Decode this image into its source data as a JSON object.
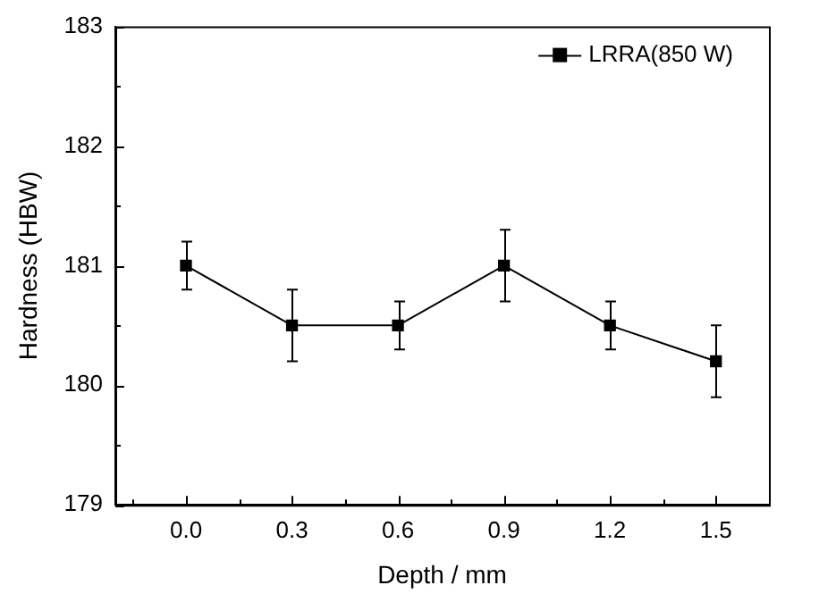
{
  "chart_data": {
    "type": "line",
    "xlabel": "Depth / mm",
    "ylabel": "Hardness (HBW)",
    "x": [
      0.0,
      0.3,
      0.6,
      0.9,
      1.2,
      1.5
    ],
    "series": [
      {
        "name": "LRRA(850 W)",
        "color": "#000000",
        "values": [
          181.0,
          180.5,
          180.5,
          181.0,
          180.5,
          180.2
        ],
        "errors": [
          0.2,
          0.3,
          0.2,
          0.3,
          0.2,
          0.3
        ]
      }
    ],
    "xlim": [
      -0.2,
      1.65
    ],
    "xticks": [
      {
        "value": -0.15,
        "label": null
      },
      {
        "value": 0.0,
        "label": "0.0"
      },
      {
        "value": 0.15,
        "label": null
      },
      {
        "value": 0.3,
        "label": "0.3"
      },
      {
        "value": 0.45,
        "label": null
      },
      {
        "value": 0.6,
        "label": "0.6"
      },
      {
        "value": 0.75,
        "label": null
      },
      {
        "value": 0.9,
        "label": "0.9"
      },
      {
        "value": 1.05,
        "label": null
      },
      {
        "value": 1.2,
        "label": "1.2"
      },
      {
        "value": 1.35,
        "label": null
      },
      {
        "value": 1.5,
        "label": "1.5"
      }
    ],
    "ylim": [
      179,
      183
    ],
    "yticks": [
      179,
      {
        "value": 179.5,
        "label": null
      },
      180,
      {
        "value": 180.5,
        "label": null
      },
      181,
      {
        "value": 181.5,
        "label": null
      },
      182,
      {
        "value": 182.5,
        "label": null
      },
      183
    ],
    "grid": false,
    "legend": "top right",
    "marker": "square",
    "line_style": "solid"
  }
}
